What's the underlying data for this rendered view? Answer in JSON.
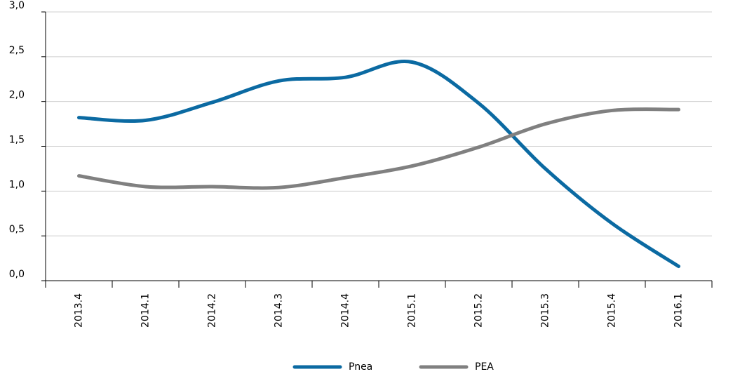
{
  "chart_data": {
    "type": "line",
    "categories": [
      "2013.4",
      "2014.1",
      "2014.2",
      "2014.3",
      "2014.4",
      "2015.1",
      "2015.2",
      "2015.3",
      "2015.4",
      "2016.1"
    ],
    "series": [
      {
        "name": "Pnea",
        "color": "#0b6aa2",
        "values": [
          1.82,
          1.79,
          1.99,
          2.23,
          2.27,
          2.44,
          1.98,
          1.25,
          0.64,
          0.16
        ]
      },
      {
        "name": "PEA",
        "color": "#808080",
        "values": [
          1.17,
          1.05,
          1.05,
          1.04,
          1.15,
          1.28,
          1.49,
          1.75,
          1.9,
          1.91
        ]
      }
    ],
    "ylim": [
      0,
      3
    ],
    "yticks": [
      {
        "value": 0,
        "label": "0,0"
      },
      {
        "value": 0.5,
        "label": "0,5"
      },
      {
        "value": 1,
        "label": "1,0"
      },
      {
        "value": 1.5,
        "label": "1,5"
      },
      {
        "value": 2,
        "label": "2,0"
      },
      {
        "value": 2.5,
        "label": "2,5"
      },
      {
        "value": 3,
        "label": "3,0"
      }
    ],
    "grid": true,
    "legend": "bottom"
  }
}
